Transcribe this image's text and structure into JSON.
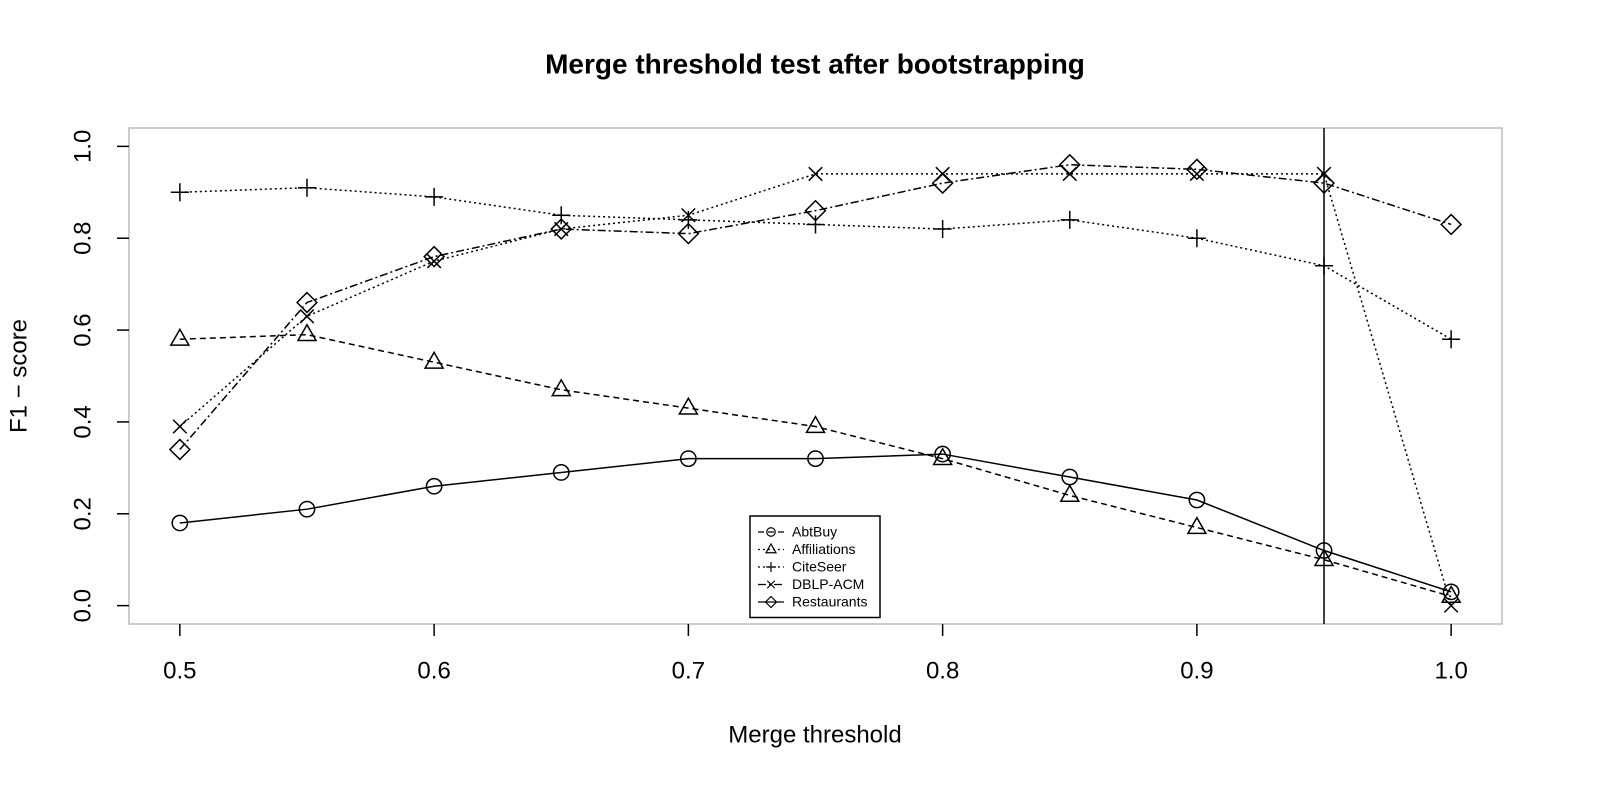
{
  "chart_data": {
    "type": "line",
    "title": "Merge threshold test after bootstrapping",
    "x_label": "Merge threshold",
    "y_label": "F1 − score",
    "x": [
      0.5,
      0.55,
      0.6,
      0.65,
      0.7,
      0.75,
      0.8,
      0.85,
      0.9,
      0.95,
      1.0
    ],
    "series": [
      {
        "name": "AbtBuy",
        "color": "#000000",
        "marker": "circle",
        "dash": "none",
        "legend_dash": "6 4",
        "values": [
          0.18,
          0.21,
          0.26,
          0.29,
          0.32,
          0.32,
          0.33,
          0.28,
          0.23,
          0.12,
          0.03
        ]
      },
      {
        "name": "Affiliations",
        "color": "#000000",
        "marker": "triangle",
        "dash": "6 4",
        "legend_dash": "2 3",
        "values": [
          0.58,
          0.59,
          0.53,
          0.47,
          0.43,
          0.39,
          0.32,
          0.24,
          0.17,
          0.1,
          0.02
        ]
      },
      {
        "name": "CiteSeer",
        "color": "#000000",
        "marker": "plus",
        "dash": "2 3",
        "legend_dash": "2 3",
        "values": [
          0.9,
          0.91,
          0.89,
          0.85,
          0.84,
          0.83,
          0.82,
          0.84,
          0.8,
          0.74,
          0.58
        ]
      },
      {
        "name": "DBLP-ACM",
        "color": "#000000",
        "marker": "cross",
        "dash": "2 3",
        "legend_dash": "8 3 2 3",
        "values": [
          0.39,
          0.63,
          0.75,
          0.82,
          0.85,
          0.94,
          0.94,
          0.94,
          0.94,
          0.94,
          0.0
        ]
      },
      {
        "name": "Restaurants",
        "color": "#000000",
        "marker": "diamond",
        "dash": "8 3 2 3",
        "legend_dash": "none",
        "values": [
          0.34,
          0.66,
          0.76,
          0.82,
          0.81,
          0.86,
          0.92,
          0.96,
          0.95,
          0.92,
          0.83
        ]
      }
    ],
    "vline": 0.95,
    "xlim": [
      0.48,
      1.02
    ],
    "ylim": [
      -0.04,
      1.04
    ],
    "xticks": [
      0.5,
      0.6,
      0.7,
      0.8,
      0.9,
      {
        "value": 1,
        "label": "1.0"
      }
    ],
    "yticks": [
      {
        "value": 0,
        "label": "0.0"
      },
      0.2,
      0.4,
      0.6,
      0.8,
      {
        "value": 1,
        "label": "1.0"
      }
    ],
    "grid": false,
    "legend": "bottom"
  }
}
